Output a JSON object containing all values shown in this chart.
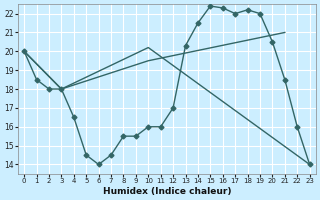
{
  "xlabel": "Humidex (Indice chaleur)",
  "ylabel": "",
  "bg_color": "#cceeff",
  "line_color": "#336666",
  "grid_color": "#ffffff",
  "xlim": [
    -0.5,
    23.5
  ],
  "ylim": [
    13.5,
    22.5
  ],
  "xticks": [
    0,
    1,
    2,
    3,
    4,
    5,
    6,
    7,
    8,
    9,
    10,
    11,
    12,
    13,
    14,
    15,
    16,
    17,
    18,
    19,
    20,
    21,
    22,
    23
  ],
  "yticks": [
    14,
    15,
    16,
    17,
    18,
    19,
    20,
    21,
    22
  ],
  "line1_x": [
    0,
    1,
    2,
    3,
    4,
    5,
    6,
    7,
    8,
    9,
    10,
    11,
    12,
    13,
    14,
    15,
    16,
    17,
    18,
    19,
    20,
    21,
    22,
    23
  ],
  "line1_y": [
    20,
    18.5,
    18,
    18,
    16.5,
    14.5,
    14,
    14.5,
    15.5,
    15.5,
    16,
    16,
    17,
    20.3,
    21.5,
    22.4,
    22.3,
    22,
    22.2,
    22,
    20.5,
    18.5,
    16,
    14
  ],
  "line2_x": [
    0,
    3,
    10,
    23
  ],
  "line2_y": [
    20,
    18,
    20.2,
    14
  ],
  "line3_x": [
    0,
    3,
    10,
    21
  ],
  "line3_y": [
    20,
    18,
    19.5,
    21
  ]
}
